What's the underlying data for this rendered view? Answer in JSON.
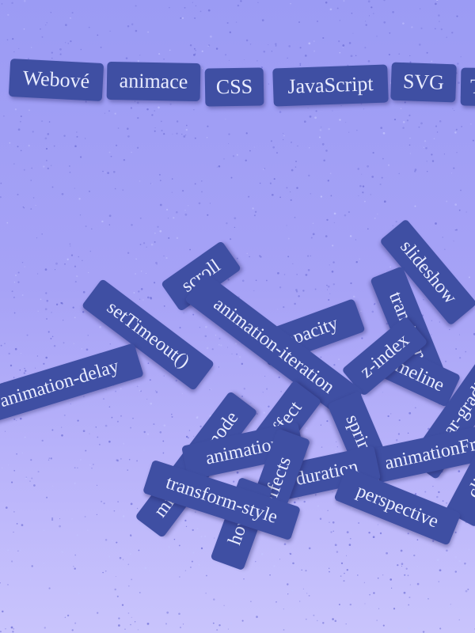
{
  "colors": {
    "tag_background": "#3f4fa3",
    "tag_text": "#e9ecff",
    "background_top": "#9b9bf4",
    "background_bottom": "#c9c4fc"
  },
  "header_tags": [
    {
      "label": "Webové"
    },
    {
      "label": "animace"
    },
    {
      "label": "CSS"
    },
    {
      "label": "JavaScript"
    },
    {
      "label": "SVG"
    },
    {
      "label": "T"
    }
  ],
  "pile_tags": [
    {
      "label": "slideshow"
    },
    {
      "label": "scroll"
    },
    {
      "label": "setTimeout()"
    },
    {
      "label": "transition"
    },
    {
      "label": "opacity"
    },
    {
      "label": "timeline"
    },
    {
      "label": "z-index"
    },
    {
      "label": "animation-delay"
    },
    {
      "label": "linear-gradient"
    },
    {
      "label": "animation-iteration"
    },
    {
      "label": "effect"
    },
    {
      "label": "spring"
    },
    {
      "label": "mix-blend-mode"
    },
    {
      "label": "animation"
    },
    {
      "label": "animationFrame"
    },
    {
      "label": "duration"
    },
    {
      "label": "effects"
    },
    {
      "label": "hover"
    },
    {
      "label": "clip"
    },
    {
      "label": "transform-style"
    },
    {
      "label": "perspective"
    }
  ]
}
